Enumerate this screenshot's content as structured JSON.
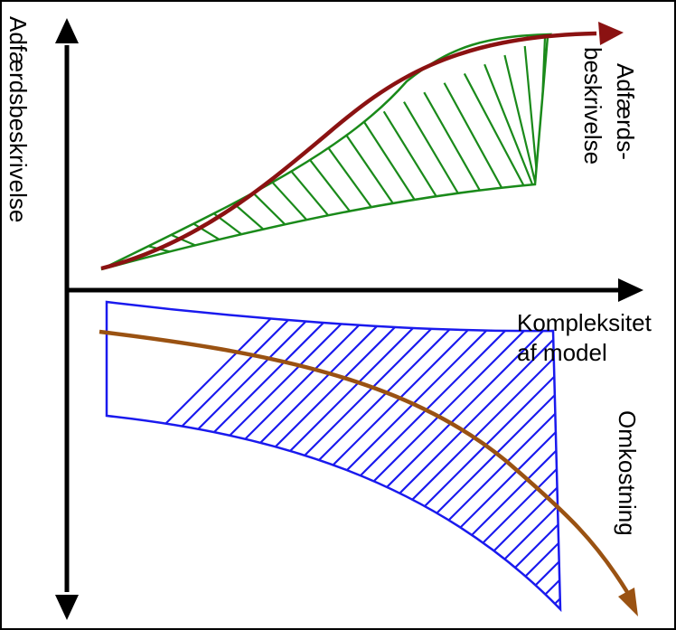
{
  "labels": {
    "y_axis": "Adfærdsbeskrivelse",
    "curve_upper_line1": "Adfærds-",
    "curve_upper_line2": "beskrivelse",
    "x_axis_line1": "Kompleksitet",
    "x_axis_line2": "af model",
    "curve_lower": "Omkostning"
  },
  "colors": {
    "axis": "#000000",
    "upper_hatch": "#1a8a1a",
    "upper_curve": "#8b1212",
    "lower_hatch": "#1a1aee",
    "lower_curve": "#9a5212"
  }
}
